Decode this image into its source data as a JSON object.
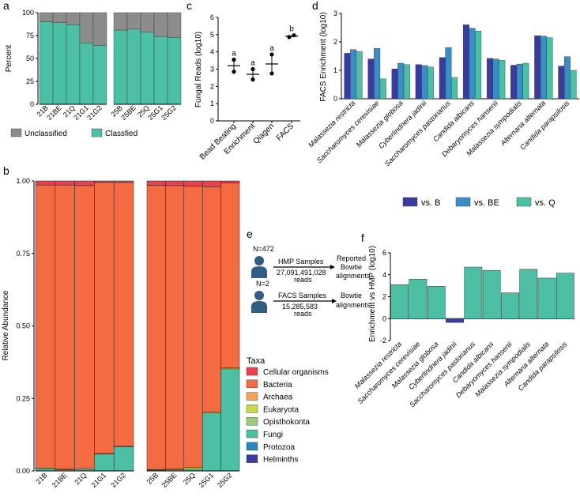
{
  "colors": {
    "classified": "#4DBFA5",
    "unclassified": "#8C8C8C",
    "bacteria": "#F46A42",
    "cellular": "#E8404F",
    "archaea": "#F7A35A",
    "eukaryota": "#C8D94A",
    "opisthokonta": "#9ACD7E",
    "fungi": "#4DBFA5",
    "protozoa": "#2E86C1",
    "helminths": "#3A3C9C",
    "vsB": "#3A3C9C",
    "vsBE": "#3C8DC4",
    "vsQ": "#4DBFA5",
    "axis": "#000000"
  },
  "chart_data": [
    {
      "panel": "a",
      "type": "bar",
      "stacked": true,
      "ylabel": "Percent",
      "ylim": [
        0,
        100
      ],
      "yticks": [
        0,
        25,
        50,
        75,
        100
      ],
      "groups": [
        [
          "21B",
          "21BE",
          "21Q",
          "21G1",
          "21G2"
        ],
        [
          "25B",
          "25BE",
          "25Q",
          "25G1",
          "25G2"
        ]
      ],
      "categories": [
        "21B",
        "21BE",
        "21Q",
        "21G1",
        "21G2",
        "25B",
        "25BE",
        "25Q",
        "25G1",
        "25G2"
      ],
      "series": [
        {
          "name": "Classfied",
          "values": [
            90,
            89,
            87,
            67,
            64,
            81,
            82,
            79,
            74,
            73
          ]
        },
        {
          "name": "Unclassified",
          "values": [
            10,
            11,
            13,
            33,
            36,
            19,
            18,
            21,
            26,
            27
          ]
        }
      ],
      "legend": [
        "Unclassified",
        "Classfied"
      ]
    },
    {
      "panel": "b",
      "type": "bar",
      "stacked": true,
      "ylabel": "Relative Abundance",
      "ylim": [
        0,
        1
      ],
      "yticks": [
        0,
        0.25,
        0.5,
        0.75,
        1
      ],
      "ytick_labels": [
        "0.00",
        "0.25",
        "0.50",
        "0.75",
        "1.00"
      ],
      "groups": [
        [
          "21B",
          "21BE",
          "21Q",
          "21G1",
          "21G2"
        ],
        [
          "25B",
          "25BE",
          "25Q",
          "25G1",
          "25G2"
        ]
      ],
      "categories": [
        "21B",
        "21BE",
        "21Q",
        "21G1",
        "21G2",
        "25B",
        "25BE",
        "25Q",
        "25G1",
        "25G2"
      ],
      "series": [
        {
          "name": "Fungi",
          "values": [
            0.006,
            0.004,
            0.005,
            0.058,
            0.083,
            0.003,
            0.004,
            0.006,
            0.2,
            0.352
          ]
        },
        {
          "name": "Eukaryota",
          "values": [
            0.004,
            0.002,
            0.004,
            0.002,
            0.002,
            0.002,
            0.003,
            0.006,
            0.004,
            0.003
          ]
        },
        {
          "name": "Bacteria",
          "values": [
            0.976,
            0.98,
            0.975,
            0.935,
            0.91,
            0.98,
            0.977,
            0.97,
            0.776,
            0.638
          ]
        },
        {
          "name": "Cellular organisms",
          "values": [
            0.014,
            0.014,
            0.016,
            0.005,
            0.005,
            0.015,
            0.016,
            0.018,
            0.02,
            0.007
          ]
        }
      ],
      "legend_title": "Taxa",
      "legend": [
        "Cellular organisms",
        "Bacteria",
        "Archaea",
        "Eukaryota",
        "Opisthokonta",
        "Fungi",
        "Protozoa",
        "Helminths"
      ]
    },
    {
      "panel": "c",
      "type": "scatter",
      "ylabel": "Fungal Reads (log10)",
      "ylim": [
        0,
        6
      ],
      "yticks": [
        0,
        1,
        2,
        3,
        4,
        5,
        6
      ],
      "categories": [
        "Bead Beating",
        "Enrichment",
        "Qiagen",
        "FACS"
      ],
      "points": [
        [
          3.55,
          2.85
        ],
        [
          3.0,
          2.4
        ],
        [
          3.85,
          2.75
        ],
        [
          4.86,
          4.96
        ]
      ],
      "means": [
        3.2,
        2.7,
        3.3,
        4.91
      ],
      "sig_letters": [
        "a",
        "a",
        "a",
        "b"
      ]
    },
    {
      "panel": "d",
      "type": "bar",
      "ylabel": "FACS Enrichment (log10)",
      "ylim": [
        0,
        3
      ],
      "yticks": [
        0,
        1,
        2,
        3
      ],
      "categories": [
        "Malassezia restricta",
        "Saccharomyces cerevisiae",
        "Malassezia globosa",
        "Cyberlindnera jadinii",
        "Saccharomyces pastorianus",
        "Candida albicans",
        "Debaryomyces hansenii",
        "Malassezia sympodialis",
        "Alternaria alternata",
        "Candida parapsilosis"
      ],
      "series": [
        {
          "name": "vs. B",
          "values": [
            1.6,
            1.4,
            1.05,
            1.2,
            1.45,
            2.6,
            1.42,
            1.18,
            2.22,
            1.15
          ]
        },
        {
          "name": "vs. BE",
          "values": [
            1.73,
            1.77,
            1.25,
            1.17,
            1.8,
            2.48,
            1.4,
            1.22,
            2.2,
            1.48
          ]
        },
        {
          "name": "vs. Q",
          "values": [
            1.66,
            0.7,
            1.2,
            1.12,
            0.75,
            2.38,
            1.35,
            1.25,
            2.15,
            1.0
          ]
        }
      ],
      "legend": [
        "vs. B",
        "vs. BE",
        "vs. Q"
      ]
    },
    {
      "panel": "f",
      "type": "bar",
      "ylabel": "Enrichment vs HMP (log10)",
      "ylim": [
        -2,
        6
      ],
      "yticks": [
        -2,
        0,
        2,
        4,
        6
      ],
      "categories": [
        "Malassezia restricta",
        "Saccharomyces cerevisiae",
        "Malassezia globosa",
        "Cyberlindnera jadinii",
        "Saccharomyces pastorianus",
        "Candida albicans",
        "Debaryomyces hansenii",
        "Malassezia sympodialis",
        "Alternaria alternata",
        "Candida parapsilosis"
      ],
      "values": [
        3.1,
        3.6,
        2.95,
        -0.35,
        4.7,
        4.4,
        2.35,
        4.5,
        3.7,
        4.15
      ]
    }
  ],
  "panel_letters": {
    "a": "a",
    "b": "b",
    "c": "c",
    "d": "d",
    "e": "e",
    "f": "f"
  },
  "panel_e": {
    "row1": {
      "n": "N=472",
      "box_title": "HMP Samples",
      "reads": "27,091,491,028",
      "reads_label": "reads",
      "result_line1": "Reported",
      "result_line2": "Bowtie",
      "result_line3": "alignments"
    },
    "row2": {
      "n": "N=2",
      "box_title": "FACS Samples",
      "reads": "15,285,583",
      "reads_label": "reads",
      "result_line1": "Bowtie",
      "result_line2": "alignments"
    },
    "icons": [
      "person-icon",
      "person-icon"
    ]
  }
}
